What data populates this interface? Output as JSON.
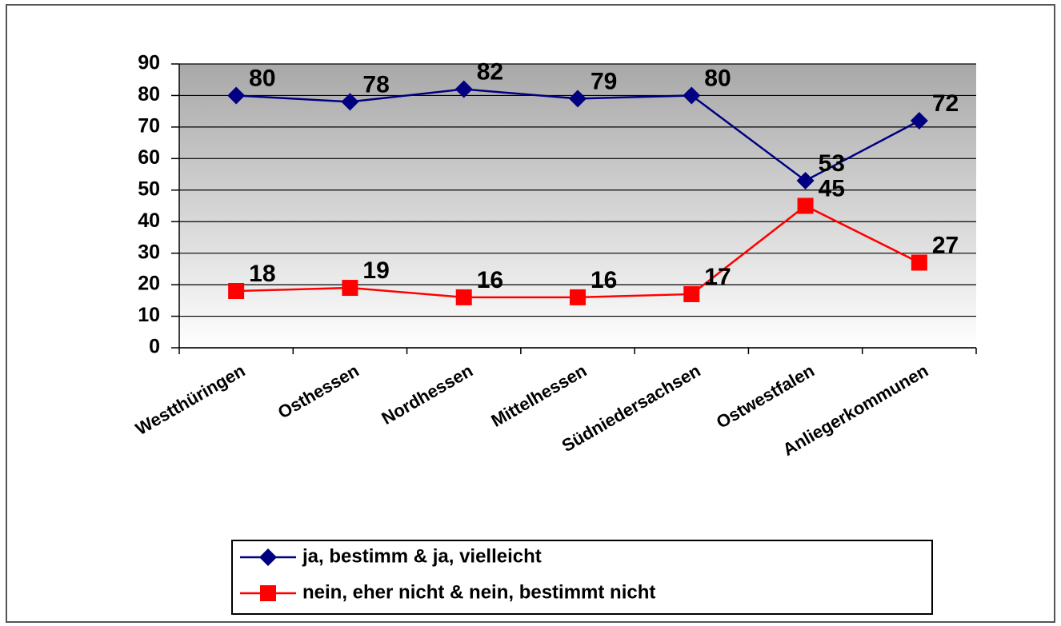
{
  "chart_data": {
    "type": "line",
    "categories": [
      "Westthüringen",
      "Osthessen",
      "Nordhessen",
      "Mittelhessen",
      "Südniedersachsen",
      "Ostwestfalen",
      "Anliegerkommunen"
    ],
    "series": [
      {
        "name": "ja, bestimm & ja, vielleicht",
        "color": "#000080",
        "marker": "diamond",
        "values": [
          80,
          78,
          82,
          79,
          80,
          53,
          72
        ]
      },
      {
        "name": "nein, eher nicht & nein, bestimmt nicht",
        "color": "#ff0000",
        "marker": "square",
        "values": [
          18,
          19,
          16,
          16,
          17,
          45,
          27
        ]
      }
    ],
    "ylim": [
      0,
      90
    ],
    "yticks": [
      0,
      10,
      20,
      30,
      40,
      50,
      60,
      70,
      80,
      90
    ],
    "grid": true,
    "legend": "bottom"
  }
}
